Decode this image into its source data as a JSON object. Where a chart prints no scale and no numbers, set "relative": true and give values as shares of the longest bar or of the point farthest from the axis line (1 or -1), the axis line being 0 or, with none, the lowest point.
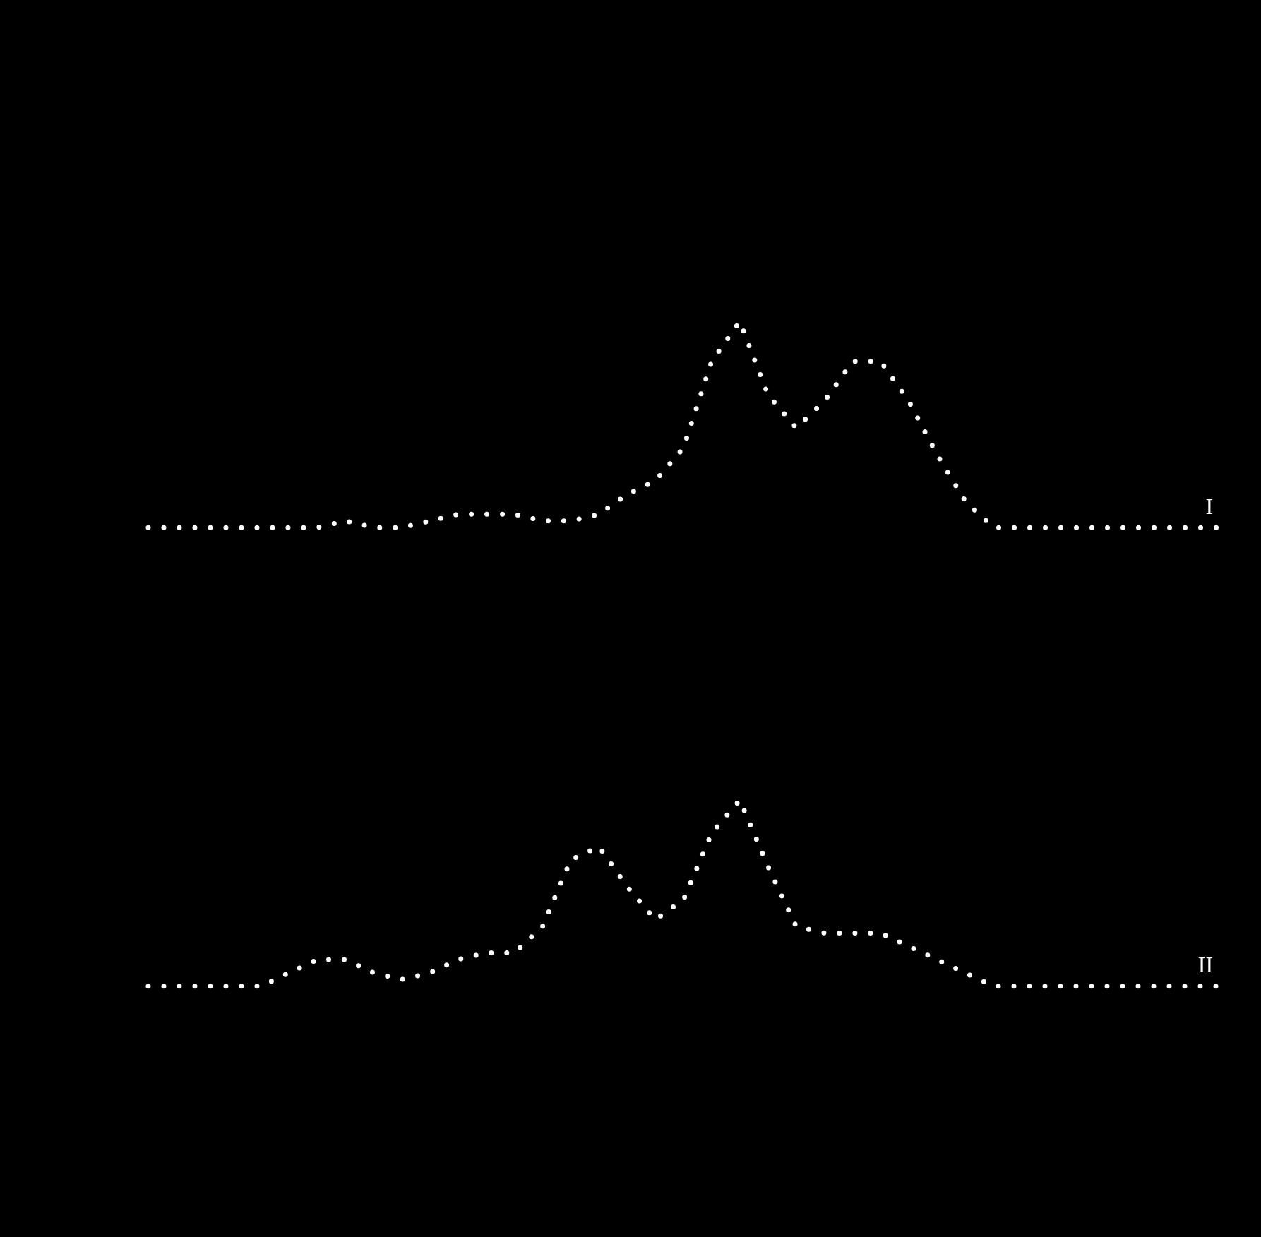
{
  "chart_data": {
    "type": "line",
    "relative": true,
    "marker": "none",
    "line_style": "dotted",
    "legend": false,
    "categories": [
      null,
      null,
      null,
      null,
      null,
      null,
      null,
      null,
      null,
      null,
      null,
      null,
      null,
      null,
      null,
      null,
      null,
      null,
      null,
      null,
      null,
      null,
      null,
      null,
      null,
      null,
      null,
      null,
      null,
      null,
      null,
      null,
      null,
      null,
      null,
      null,
      null,
      null,
      null
    ],
    "series": [
      {
        "name": "I",
        "color": "#ffffff",
        "values": [
          0.69,
          0.69,
          0.69,
          0.69,
          0.69,
          0.69,
          0.69,
          0.7,
          0.69,
          0.69,
          0.7,
          0.71,
          0.71,
          0.71,
          0.7,
          0.7,
          0.71,
          0.74,
          0.76,
          0.81,
          0.94,
          1,
          0.89,
          0.84,
          0.88,
          0.94,
          0.94,
          0.88,
          0.8,
          0.73,
          0.69,
          0.69,
          0.69,
          0.69,
          0.69,
          0.69,
          0.69,
          0.69,
          0.69
        ]
      },
      {
        "name": "II",
        "color": "#ffffff",
        "values": [
          0,
          0,
          0,
          0,
          0,
          0.02,
          0.04,
          0.04,
          0.02,
          0.01,
          0.02,
          0.04,
          0.05,
          0.05,
          0.09,
          0.19,
          0.21,
          0.15,
          0.1,
          0.13,
          0.23,
          0.28,
          0.18,
          0.09,
          0.08,
          0.08,
          0.08,
          0.06,
          0.04,
          0.02,
          0,
          0,
          0,
          0,
          0,
          0,
          0,
          0,
          0
        ]
      }
    ]
  }
}
